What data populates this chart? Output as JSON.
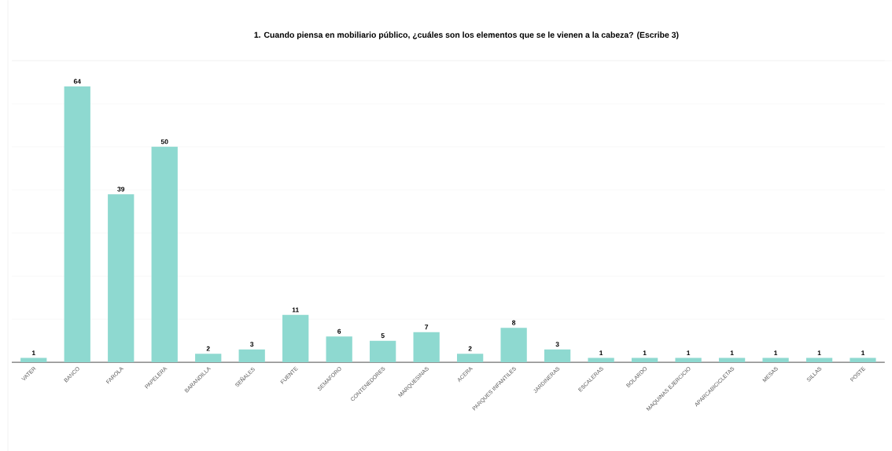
{
  "chart_data": {
    "type": "bar",
    "title": "1. Cuando piensa en mobiliario público, ¿cuáles son los elementos que se le vienen a la cabeza? (Escribe 3)",
    "categories": [
      "VATER",
      "BANCO",
      "FAROLA",
      "PAPELERA",
      "BARANDILLA",
      "SEÑALES",
      "FUENTE",
      "SEMAFORO",
      "CONTENEDORES",
      "MARQUESINAS",
      "ACERA",
      "PARQUES INFANTILES",
      "JARDINERAS",
      "ESCALERAS",
      "BOLARDO",
      "MAQUINAS EJERCICIO",
      "APARCABICICLETAS",
      "MESAS",
      "SILLAS",
      "POSTE"
    ],
    "values": [
      1,
      64,
      39,
      50,
      2,
      3,
      11,
      6,
      5,
      7,
      2,
      8,
      3,
      1,
      1,
      1,
      1,
      1,
      1,
      1
    ],
    "color": "#8ed9d0",
    "ylim": [
      0,
      70
    ],
    "yticks": [
      {
        "value": 0,
        "label": null
      },
      {
        "value": 10,
        "label": null
      },
      {
        "value": 20,
        "label": null
      },
      {
        "value": 30,
        "label": null
      },
      {
        "value": 40,
        "label": null
      },
      {
        "value": 50,
        "label": null
      },
      {
        "value": 60,
        "label": null
      },
      {
        "value": 70,
        "label": null
      }
    ],
    "tick_labels": "x",
    "grid": "y",
    "data_labels": true
  }
}
